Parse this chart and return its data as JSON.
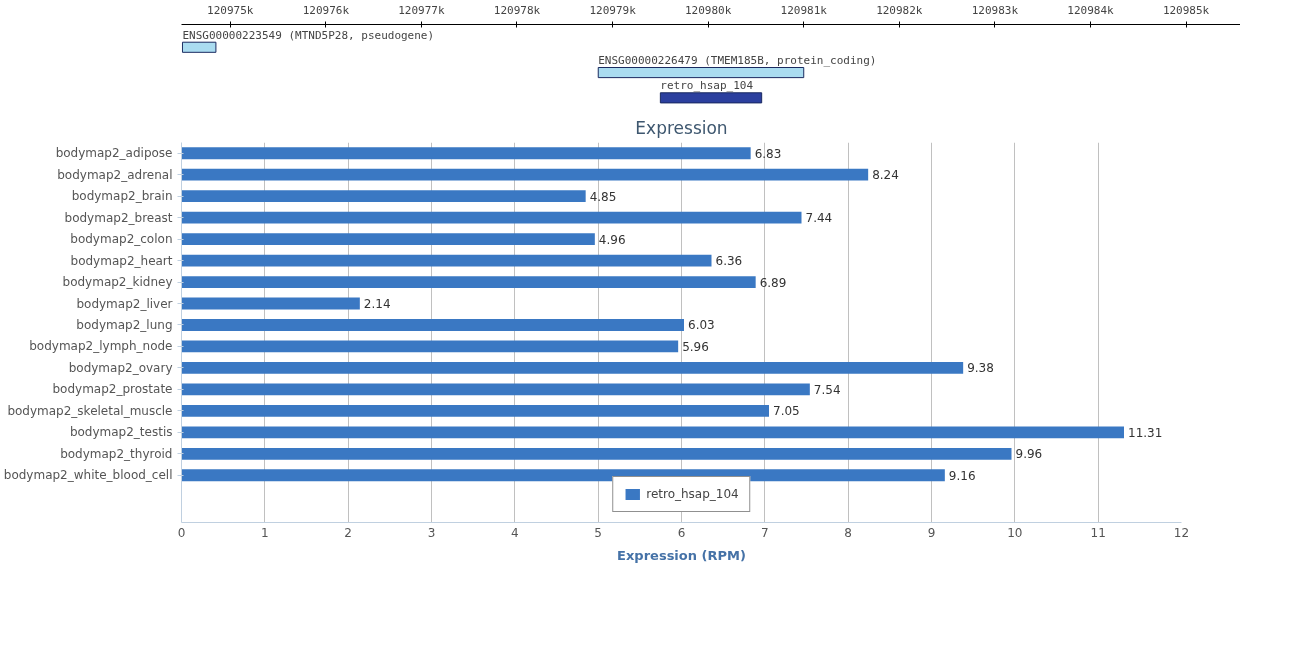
{
  "chart_data": [
    {
      "type": "bar",
      "orientation": "horizontal",
      "categories": [
        null,
        null,
        null
      ],
      "annotations": [
        "ENSG00000223549 (MTND5P28, pseudogene)",
        "ENSG00000226479 (TMEM185B, protein_coding)",
        "retro_hsap_104"
      ],
      "base": [
        120974.5,
        120978.85,
        120979.5
      ],
      "values": [
        0.35,
        2.15,
        1.06
      ],
      "colors": [
        "#aadcf0",
        "#aadcf0",
        "#2b3f9e"
      ],
      "xlim": [
        120974.49,
        120985.58
      ],
      "xticks": [
        {
          "value": 120975,
          "label": "120975k"
        },
        {
          "value": 120976,
          "label": "120976k"
        },
        {
          "value": 120977,
          "label": "120977k"
        },
        {
          "value": 120978,
          "label": "120978k"
        },
        {
          "value": 120979,
          "label": "120979k"
        },
        {
          "value": 120980,
          "label": "120980k"
        },
        {
          "value": 120981,
          "label": "120981k"
        },
        {
          "value": 120982,
          "label": "120982k"
        },
        {
          "value": 120983,
          "label": "120983k"
        },
        {
          "value": 120984,
          "label": "120984k"
        },
        {
          "value": 120985,
          "label": "120985k"
        }
      ],
      "grid": false,
      "tick_labels": "x"
    },
    {
      "type": "bar",
      "orientation": "horizontal",
      "title": "Expression",
      "xlabel": "Expression (RPM)",
      "categories": [
        "bodymap2_adipose",
        "bodymap2_adrenal",
        "bodymap2_brain",
        "bodymap2_breast",
        "bodymap2_colon",
        "bodymap2_heart",
        "bodymap2_kidney",
        "bodymap2_liver",
        "bodymap2_lung",
        "bodymap2_lymph_node",
        "bodymap2_ovary",
        "bodymap2_prostate",
        "bodymap2_skeletal_muscle",
        "bodymap2_testis",
        "bodymap2_thyroid",
        "bodymap2_white_blood_cell"
      ],
      "series": [
        {
          "name": "retro_hsap_104",
          "color": "#3a78c3",
          "values": [
            6.83,
            8.24,
            4.85,
            7.44,
            4.96,
            6.36,
            6.89,
            2.14,
            6.03,
            5.96,
            9.38,
            7.54,
            7.05,
            11.31,
            9.96,
            9.16
          ]
        }
      ],
      "xlim": [
        0,
        12
      ],
      "xticks": [
        0,
        1,
        2,
        3,
        4,
        5,
        6,
        7,
        8,
        9,
        10,
        11,
        12
      ],
      "grid": "x",
      "data_labels": true,
      "legend": "bottom"
    }
  ]
}
